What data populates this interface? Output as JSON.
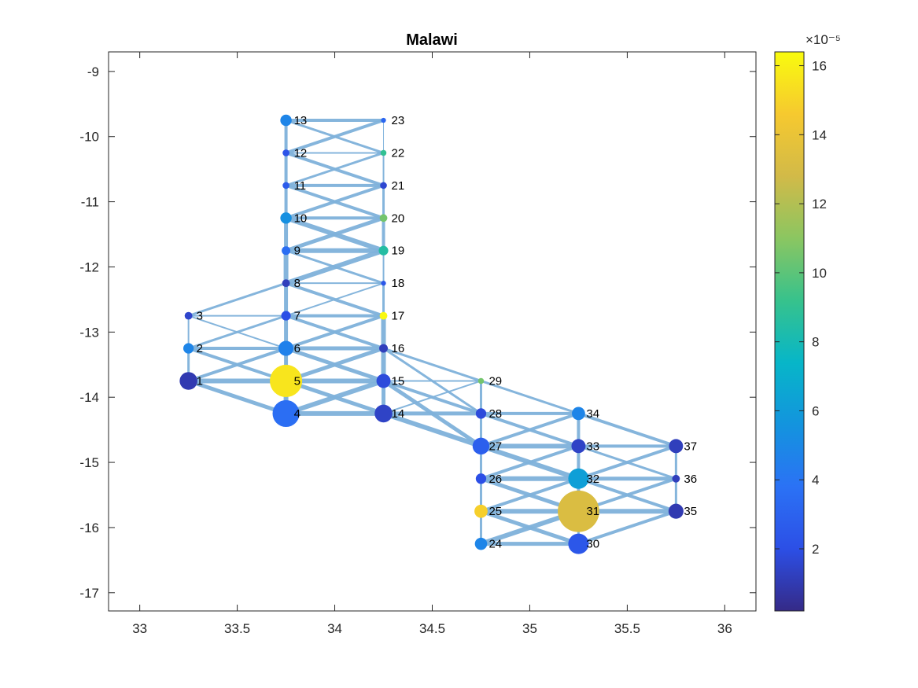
{
  "chart_data": {
    "type": "network-map",
    "title": "Malawi",
    "xlabel": "",
    "ylabel": "",
    "xlim": [
      32.84,
      36.16
    ],
    "ylim": [
      -17.28,
      -8.7
    ],
    "xticks": [
      33,
      33.5,
      34,
      34.5,
      35,
      35.5,
      36
    ],
    "xtick_labels": [
      "33",
      "33.5",
      "34",
      "34.5",
      "35",
      "35.5",
      "36"
    ],
    "yticks": [
      -9,
      -10,
      -11,
      -12,
      -13,
      -14,
      -15,
      -16,
      -17
    ],
    "ytick_labels": [
      "-9",
      "-10",
      "-11",
      "-12",
      "-13",
      "-14",
      "-15",
      "-16",
      "-17"
    ],
    "grid": false,
    "edge_color": "#7fb2db",
    "colorbar": {
      "exponent_label": "×10⁻⁵",
      "range": [
        0.2,
        16.4
      ],
      "ticks": [
        2,
        4,
        6,
        8,
        10,
        12,
        14,
        16
      ],
      "tick_labels": [
        "2",
        "4",
        "6",
        "8",
        "10",
        "12",
        "14",
        "16"
      ],
      "colormap": "parula",
      "colormap_stops": [
        "#352a87",
        "#2c4fe6",
        "#2b72f5",
        "#1394de",
        "#07b6c8",
        "#37c28c",
        "#8bc661",
        "#d2ba48",
        "#f6c92f",
        "#f9fb0e"
      ]
    },
    "nodes": [
      {
        "id": 1,
        "x": 33.25,
        "y": -13.75,
        "value": 1.0,
        "size": 1.6
      },
      {
        "id": 2,
        "x": 33.25,
        "y": -13.25,
        "value": 4.8,
        "size": 0.8
      },
      {
        "id": 3,
        "x": 33.25,
        "y": -12.75,
        "value": 1.5,
        "size": 0.5
      },
      {
        "id": 4,
        "x": 33.75,
        "y": -14.25,
        "value": 3.6,
        "size": 2.6
      },
      {
        "id": 5,
        "x": 33.75,
        "y": -13.75,
        "value": 15.6,
        "size": 3.2
      },
      {
        "id": 6,
        "x": 33.75,
        "y": -13.25,
        "value": 4.6,
        "size": 1.3
      },
      {
        "id": 7,
        "x": 33.75,
        "y": -12.75,
        "value": 2.0,
        "size": 0.7
      },
      {
        "id": 8,
        "x": 33.75,
        "y": -12.25,
        "value": 1.2,
        "size": 0.5
      },
      {
        "id": 9,
        "x": 33.75,
        "y": -11.75,
        "value": 3.6,
        "size": 0.6
      },
      {
        "id": 10,
        "x": 33.75,
        "y": -11.25,
        "value": 5.4,
        "size": 0.9
      },
      {
        "id": 11,
        "x": 33.75,
        "y": -10.75,
        "value": 2.6,
        "size": 0.4
      },
      {
        "id": 12,
        "x": 33.75,
        "y": -10.25,
        "value": 2.2,
        "size": 0.4
      },
      {
        "id": 13,
        "x": 33.75,
        "y": -9.75,
        "value": 4.8,
        "size": 0.9
      },
      {
        "id": 14,
        "x": 34.25,
        "y": -14.25,
        "value": 1.4,
        "size": 1.6
      },
      {
        "id": 15,
        "x": 34.25,
        "y": -13.75,
        "value": 1.8,
        "size": 1.2
      },
      {
        "id": 16,
        "x": 34.25,
        "y": -13.25,
        "value": 1.2,
        "size": 0.6
      },
      {
        "id": 17,
        "x": 34.25,
        "y": -12.75,
        "value": 16.3,
        "size": 0.5
      },
      {
        "id": 18,
        "x": 34.25,
        "y": -12.25,
        "value": 2.4,
        "size": 0.2
      },
      {
        "id": 19,
        "x": 34.25,
        "y": -11.75,
        "value": 8.5,
        "size": 0.7
      },
      {
        "id": 20,
        "x": 34.25,
        "y": -11.25,
        "value": 10.5,
        "size": 0.5
      },
      {
        "id": 21,
        "x": 34.25,
        "y": -10.75,
        "value": 1.6,
        "size": 0.4
      },
      {
        "id": 22,
        "x": 34.25,
        "y": -10.25,
        "value": 9.0,
        "size": 0.3
      },
      {
        "id": 23,
        "x": 34.25,
        "y": -9.75,
        "value": 3.2,
        "size": 0.2
      },
      {
        "id": 24,
        "x": 34.75,
        "y": -16.25,
        "value": 4.8,
        "size": 1.0
      },
      {
        "id": 25,
        "x": 34.75,
        "y": -15.75,
        "value": 14.8,
        "size": 1.1
      },
      {
        "id": 26,
        "x": 34.75,
        "y": -15.25,
        "value": 2.0,
        "size": 0.8
      },
      {
        "id": 27,
        "x": 34.75,
        "y": -14.75,
        "value": 2.8,
        "size": 1.5
      },
      {
        "id": 28,
        "x": 34.75,
        "y": -14.25,
        "value": 1.8,
        "size": 0.8
      },
      {
        "id": 29,
        "x": 34.75,
        "y": -13.75,
        "value": 10.5,
        "size": 0.3
      },
      {
        "id": 30,
        "x": 35.25,
        "y": -16.25,
        "value": 2.4,
        "size": 1.9
      },
      {
        "id": 31,
        "x": 35.25,
        "y": -15.75,
        "value": 13.2,
        "size": 4.2
      },
      {
        "id": 32,
        "x": 35.25,
        "y": -15.25,
        "value": 6.2,
        "size": 1.9
      },
      {
        "id": 33,
        "x": 35.25,
        "y": -14.75,
        "value": 1.4,
        "size": 1.2
      },
      {
        "id": 34,
        "x": 35.25,
        "y": -14.25,
        "value": 4.8,
        "size": 1.1
      },
      {
        "id": 35,
        "x": 35.75,
        "y": -15.75,
        "value": 1.0,
        "size": 1.3
      },
      {
        "id": 36,
        "x": 35.75,
        "y": -15.25,
        "value": 1.2,
        "size": 0.5
      },
      {
        "id": 37,
        "x": 35.75,
        "y": -14.75,
        "value": 1.2,
        "size": 1.2
      }
    ],
    "edges": [
      [
        1,
        2,
        3
      ],
      [
        2,
        3,
        2
      ],
      [
        1,
        4,
        5
      ],
      [
        1,
        5,
        6
      ],
      [
        1,
        6,
        4
      ],
      [
        2,
        5,
        4
      ],
      [
        2,
        6,
        4
      ],
      [
        2,
        7,
        3
      ],
      [
        3,
        6,
        2
      ],
      [
        3,
        7,
        2
      ],
      [
        3,
        8,
        3
      ],
      [
        4,
        5,
        6
      ],
      [
        5,
        6,
        5
      ],
      [
        6,
        7,
        5
      ],
      [
        7,
        8,
        5
      ],
      [
        8,
        9,
        6
      ],
      [
        9,
        10,
        5
      ],
      [
        10,
        11,
        4
      ],
      [
        11,
        12,
        4
      ],
      [
        12,
        13,
        4
      ],
      [
        4,
        14,
        6
      ],
      [
        4,
        15,
        6
      ],
      [
        4,
        6,
        3
      ],
      [
        5,
        14,
        5
      ],
      [
        5,
        15,
        6
      ],
      [
        5,
        16,
        5
      ],
      [
        6,
        15,
        5
      ],
      [
        6,
        16,
        5
      ],
      [
        6,
        17,
        4
      ],
      [
        7,
        16,
        4
      ],
      [
        7,
        17,
        4
      ],
      [
        7,
        18,
        2
      ],
      [
        8,
        17,
        4
      ],
      [
        8,
        18,
        2
      ],
      [
        8,
        19,
        6
      ],
      [
        9,
        18,
        3
      ],
      [
        9,
        19,
        6
      ],
      [
        9,
        20,
        5
      ],
      [
        10,
        19,
        6
      ],
      [
        10,
        20,
        4
      ],
      [
        10,
        21,
        4
      ],
      [
        11,
        20,
        4
      ],
      [
        11,
        21,
        4
      ],
      [
        11,
        22,
        3
      ],
      [
        12,
        21,
        4
      ],
      [
        12,
        22,
        2
      ],
      [
        12,
        23,
        4
      ],
      [
        13,
        22,
        3
      ],
      [
        13,
        23,
        4
      ],
      [
        14,
        15,
        5
      ],
      [
        15,
        16,
        6
      ],
      [
        16,
        17,
        6
      ],
      [
        17,
        18,
        3
      ],
      [
        18,
        19,
        2
      ],
      [
        19,
        20,
        4
      ],
      [
        20,
        21,
        3
      ],
      [
        21,
        22,
        2
      ],
      [
        22,
        23,
        1
      ],
      [
        14,
        28,
        5
      ],
      [
        14,
        29,
        2
      ],
      [
        14,
        27,
        6
      ],
      [
        15,
        28,
        4
      ],
      [
        15,
        29,
        2
      ],
      [
        15,
        27,
        5
      ],
      [
        16,
        28,
        3
      ],
      [
        16,
        29,
        3
      ],
      [
        27,
        28,
        3
      ],
      [
        28,
        29,
        3
      ],
      [
        26,
        27,
        3
      ],
      [
        25,
        26,
        3
      ],
      [
        24,
        25,
        3
      ],
      [
        24,
        31,
        6
      ],
      [
        24,
        30,
        5
      ],
      [
        25,
        30,
        5
      ],
      [
        25,
        31,
        6
      ],
      [
        25,
        32,
        4
      ],
      [
        26,
        31,
        5
      ],
      [
        26,
        32,
        6
      ],
      [
        26,
        33,
        4
      ],
      [
        27,
        32,
        6
      ],
      [
        27,
        33,
        6
      ],
      [
        27,
        34,
        4
      ],
      [
        28,
        33,
        4
      ],
      [
        28,
        34,
        4
      ],
      [
        29,
        34,
        3
      ],
      [
        30,
        31,
        3
      ],
      [
        31,
        32,
        4
      ],
      [
        32,
        33,
        4
      ],
      [
        33,
        34,
        4
      ],
      [
        30,
        35,
        4
      ],
      [
        31,
        35,
        6
      ],
      [
        31,
        36,
        4
      ],
      [
        32,
        35,
        4
      ],
      [
        32,
        36,
        5
      ],
      [
        32,
        37,
        4
      ],
      [
        33,
        36,
        3
      ],
      [
        33,
        37,
        4
      ],
      [
        34,
        37,
        4
      ],
      [
        35,
        36,
        3
      ],
      [
        36,
        37,
        3
      ]
    ]
  }
}
